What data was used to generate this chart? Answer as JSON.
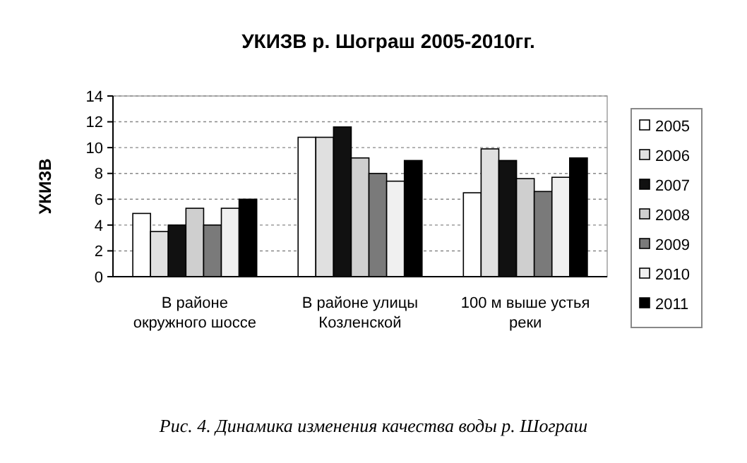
{
  "chart_data": {
    "type": "bar",
    "title": "УКИЗВ р. Шограш 2005-2010гг.",
    "ylabel": "УКИЗВ",
    "categories": [
      "В районе окружного шоссе",
      "В районе улицы Козленской",
      "100 м выше устья реки"
    ],
    "series": [
      {
        "name": "2005",
        "color": "#ffffff",
        "values": [
          4.9,
          10.8,
          6.5
        ]
      },
      {
        "name": "2006",
        "color": "#e0e0e0",
        "values": [
          3.5,
          10.8,
          9.9
        ]
      },
      {
        "name": "2007",
        "color": "#111111",
        "values": [
          4.0,
          11.6,
          9.0
        ]
      },
      {
        "name": "2008",
        "color": "#cfcfcf",
        "values": [
          5.3,
          9.2,
          7.6
        ]
      },
      {
        "name": "2009",
        "color": "#7a7a7a",
        "values": [
          4.0,
          8.0,
          6.6
        ]
      },
      {
        "name": "2010",
        "color": "#f0f0f0",
        "values": [
          5.3,
          7.4,
          7.7
        ]
      },
      {
        "name": "2011",
        "color": "#000000",
        "values": [
          6.0,
          9.0,
          9.2
        ]
      }
    ],
    "ylim": [
      0,
      14
    ],
    "yticks": [
      0,
      2,
      4,
      6,
      8,
      10,
      12,
      14
    ],
    "grid": "y",
    "legend": "right",
    "annotations": [
      "Рис. 4. Динамика изменения качества воды р. Шограш"
    ]
  }
}
